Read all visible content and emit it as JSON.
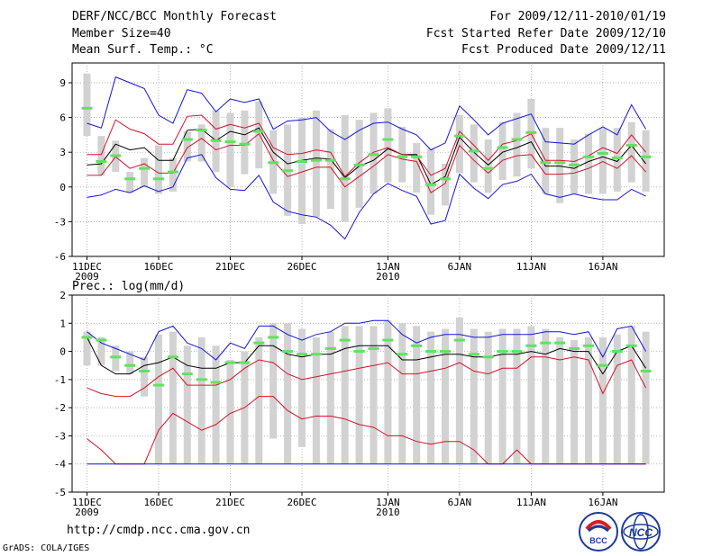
{
  "header": {
    "title": "DERF/NCC/BCC Monthly Forecast",
    "member_size": "Member Size=40",
    "variable": "Mean Surf. Temp.: °C",
    "forecast_period": "For 2009/12/11-2010/01/19",
    "fcst_started": "Fcst Started Refer Date 2009/12/10",
    "fcst_produced": "Fcst Produced Date 2009/12/11"
  },
  "footer": {
    "url": "http://cmdp.ncc.cma.gov.cn",
    "grads": "GrADS: COLA/IGES",
    "logo_left_text": "BCC",
    "logo_right_text": "NCC"
  },
  "colors": {
    "box": "#d2d2d2",
    "median": "#5fe35f",
    "mean": "#000000",
    "inner": "#d8102a",
    "outer": "#1414e0",
    "grid": "#999999"
  },
  "chart_data": [
    {
      "type": "box-line",
      "title": "",
      "xlabel": "",
      "ylabel": "Mean Surf. Temp.: °C",
      "ylim": [
        -6,
        10.5
      ],
      "yticks": [
        -6,
        -3,
        0,
        3,
        6,
        9
      ],
      "ytick_labels": [
        "-6",
        "-3",
        "0",
        "3",
        "6",
        "9"
      ],
      "xticks": [
        {
          "day": 1,
          "label": "11DEC",
          "sub": "2009"
        },
        {
          "day": 6,
          "label": "16DEC",
          "sub": ""
        },
        {
          "day": 11,
          "label": "21DEC",
          "sub": ""
        },
        {
          "day": 16,
          "label": "26DEC",
          "sub": ""
        },
        {
          "day": 22,
          "label": "1JAN",
          "sub": "2010"
        },
        {
          "day": 27,
          "label": "6JAN",
          "sub": ""
        },
        {
          "day": 32,
          "label": "11JAN",
          "sub": ""
        },
        {
          "day": 37,
          "label": "16JAN",
          "sub": ""
        }
      ],
      "x": [
        1,
        2,
        3,
        4,
        5,
        6,
        7,
        8,
        9,
        10,
        11,
        12,
        13,
        14,
        15,
        16,
        17,
        18,
        19,
        20,
        21,
        22,
        23,
        24,
        25,
        26,
        27,
        28,
        29,
        30,
        31,
        32,
        33,
        34,
        35,
        36,
        37,
        38,
        39,
        40
      ],
      "box_low": [
        4.4,
        1.0,
        1.3,
        -0.5,
        0.0,
        -0.6,
        -0.4,
        2.2,
        2.2,
        1.3,
        0.0,
        1.1,
        1.6,
        -0.6,
        -2.5,
        -3.2,
        -2.6,
        -1.9,
        -3.0,
        -1.8,
        -0.6,
        0.4,
        0.4,
        -0.5,
        -2.4,
        -1.6,
        1.2,
        0.4,
        -0.5,
        0.6,
        0.9,
        1.6,
        -0.6,
        -1.4,
        -0.6,
        -0.6,
        -0.6,
        -0.4,
        0.4,
        -0.4
      ],
      "box_high": [
        9.8,
        4.4,
        4.0,
        1.3,
        2.5,
        3.6,
        2.5,
        4.8,
        5.4,
        6.6,
        6.4,
        6.6,
        7.4,
        4.9,
        5.4,
        6.0,
        6.6,
        5.0,
        6.2,
        5.8,
        6.4,
        6.8,
        5.2,
        3.8,
        3.3,
        2.0,
        6.2,
        5.4,
        4.1,
        5.6,
        6.4,
        7.6,
        5.1,
        5.1,
        4.1,
        4.6,
        5.1,
        5.1,
        5.6,
        4.9
      ],
      "median": [
        6.8,
        2.2,
        2.7,
        0.7,
        1.6,
        0.7,
        1.3,
        4.1,
        4.9,
        4.0,
        3.9,
        3.7,
        4.8,
        2.1,
        1.4,
        2.2,
        2.3,
        2.3,
        0.7,
        1.9,
        2.8,
        4.1,
        2.6,
        2.6,
        0.2,
        0.7,
        4.4,
        3.1,
        1.6,
        3.4,
        4.1,
        4.7,
        2.1,
        2.1,
        1.9,
        2.6,
        2.9,
        2.5,
        3.6,
        2.6
      ],
      "series": [
        {
          "name": "Max",
          "role": "outer",
          "values": [
            -0.9,
            -0.7,
            -0.2,
            -0.5,
            0.1,
            -0.4,
            0.0,
            2.5,
            2.8,
            0.8,
            -0.2,
            -0.3,
            1.0,
            -1.3,
            -2.1,
            -2.4,
            -2.6,
            -3.3,
            -4.5,
            -2.2,
            -0.6,
            0.3,
            -0.3,
            -0.8,
            -3.2,
            -2.9,
            1.1,
            -0.1,
            -1.0,
            0.2,
            0.5,
            1.1,
            -0.6,
            -0.9,
            -0.6,
            -0.9,
            -1.1,
            -1.1,
            -0.2,
            -0.8
          ]
        },
        {
          "name": "Mean",
          "role": "mean",
          "values": [
            1.9,
            2.0,
            3.7,
            3.2,
            3.4,
            2.3,
            2.3,
            4.9,
            5.0,
            4.0,
            4.8,
            4.5,
            5.1,
            3.0,
            2.0,
            2.3,
            2.5,
            2.4,
            0.8,
            1.8,
            2.3,
            3.3,
            2.8,
            2.8,
            0.2,
            0.9,
            4.3,
            3.0,
            1.9,
            3.0,
            3.4,
            3.9,
            1.8,
            1.8,
            1.6,
            2.2,
            2.6,
            2.2,
            3.6,
            2.0
          ]
        },
        {
          "name": "Upper",
          "role": "inner",
          "values": [
            2.8,
            2.8,
            5.8,
            5.0,
            4.6,
            3.7,
            3.7,
            6.1,
            6.2,
            5.0,
            5.4,
            5.1,
            5.5,
            3.4,
            2.8,
            2.9,
            3.2,
            3.0,
            0.9,
            2.1,
            3.0,
            3.4,
            2.8,
            2.7,
            1.0,
            1.6,
            4.8,
            3.6,
            2.3,
            3.7,
            4.0,
            4.6,
            2.3,
            2.3,
            2.2,
            2.7,
            3.4,
            2.9,
            4.5,
            3.0
          ]
        },
        {
          "name": "Lower",
          "role": "inner",
          "values": [
            1.0,
            1.0,
            2.6,
            1.6,
            2.0,
            1.2,
            1.2,
            3.4,
            4.2,
            3.2,
            3.6,
            3.6,
            4.6,
            2.3,
            0.9,
            1.3,
            1.7,
            1.7,
            0.0,
            0.9,
            1.8,
            2.8,
            2.4,
            2.2,
            -0.5,
            0.3,
            3.6,
            2.3,
            1.2,
            2.3,
            2.7,
            2.8,
            1.1,
            1.1,
            1.2,
            1.6,
            2.2,
            1.6,
            2.7,
            1.3
          ]
        },
        {
          "name": "Min",
          "role": "outer",
          "values": [
            5.5,
            5.1,
            9.5,
            9.0,
            8.5,
            6.2,
            5.5,
            8.4,
            8.1,
            6.5,
            7.6,
            7.3,
            7.6,
            5.0,
            5.7,
            5.8,
            6.0,
            4.8,
            4.1,
            4.9,
            5.5,
            5.6,
            5.0,
            4.5,
            3.2,
            3.8,
            7.0,
            5.8,
            4.5,
            5.5,
            5.9,
            6.3,
            3.9,
            3.8,
            3.7,
            4.5,
            5.2,
            4.5,
            7.1,
            5.0
          ]
        }
      ]
    },
    {
      "type": "box-line",
      "title": "",
      "xlabel": "",
      "ylabel": "Prec.: log(mm/d)",
      "ylim": [
        -5,
        2
      ],
      "yticks": [
        -5,
        -4,
        -3,
        -2,
        -1,
        0,
        1,
        2
      ],
      "ytick_labels": [
        "-5",
        "-4",
        "-3",
        "-2",
        "-1",
        "0",
        "1",
        "2"
      ],
      "xticks": [
        {
          "day": 1,
          "label": "11DEC",
          "sub": "2009"
        },
        {
          "day": 6,
          "label": "16DEC",
          "sub": ""
        },
        {
          "day": 11,
          "label": "21DEC",
          "sub": ""
        },
        {
          "day": 16,
          "label": "26DEC",
          "sub": ""
        },
        {
          "day": 22,
          "label": "1JAN",
          "sub": "2010"
        },
        {
          "day": 27,
          "label": "6JAN",
          "sub": ""
        },
        {
          "day": 32,
          "label": "11JAN",
          "sub": ""
        },
        {
          "day": 37,
          "label": "16JAN",
          "sub": ""
        }
      ],
      "x": [
        1,
        2,
        3,
        4,
        5,
        6,
        7,
        8,
        9,
        10,
        11,
        12,
        13,
        14,
        15,
        16,
        17,
        18,
        19,
        20,
        21,
        22,
        23,
        24,
        25,
        26,
        27,
        28,
        29,
        30,
        31,
        32,
        33,
        34,
        35,
        36,
        37,
        38,
        39,
        40
      ],
      "box_low": [
        -0.5,
        -0.5,
        -0.7,
        -0.8,
        -1.6,
        -4.0,
        -4.0,
        -4.0,
        -4.0,
        -4.0,
        -4.0,
        -4.0,
        -4.0,
        -3.1,
        -4.0,
        -3.4,
        -4.0,
        -4.0,
        -4.0,
        -4.0,
        -4.0,
        -4.0,
        -4.0,
        -4.0,
        -4.0,
        -4.0,
        -4.0,
        -4.0,
        -4.0,
        -4.0,
        -4.0,
        -4.0,
        -4.0,
        -4.0,
        -4.0,
        -4.0,
        -4.0,
        -4.0,
        -4.0,
        -4.0
      ],
      "box_high": [
        0.7,
        0.5,
        0.2,
        0.0,
        -0.2,
        0.6,
        0.7,
        0.2,
        0.5,
        0.2,
        -0.3,
        0.0,
        0.5,
        1.0,
        1.0,
        0.8,
        0.5,
        0.7,
        0.9,
        0.9,
        0.9,
        1.1,
        1.0,
        0.9,
        0.7,
        0.8,
        1.2,
        0.8,
        0.7,
        0.8,
        0.8,
        0.9,
        0.8,
        0.5,
        0.4,
        0.5,
        0.5,
        0.6,
        0.9,
        0.7
      ],
      "median": [
        0.5,
        0.4,
        -0.2,
        -0.5,
        -0.7,
        -1.2,
        -0.2,
        -0.8,
        -1.0,
        -1.1,
        -0.4,
        -0.4,
        0.3,
        0.5,
        0.0,
        -0.1,
        -0.1,
        0.1,
        0.4,
        0.0,
        0.1,
        0.4,
        -0.1,
        0.2,
        0.0,
        0.0,
        0.4,
        -0.1,
        -0.2,
        0.0,
        0.0,
        0.2,
        0.3,
        0.3,
        0.1,
        0.2,
        -0.5,
        0.0,
        0.2,
        -0.7
      ],
      "series": [
        {
          "name": "Max",
          "role": "outer",
          "values": [
            0.7,
            0.3,
            0.1,
            -0.1,
            -0.3,
            0.7,
            0.9,
            0.3,
            0.1,
            -0.3,
            0.3,
            0.1,
            0.9,
            0.9,
            0.6,
            0.4,
            0.6,
            0.7,
            1.0,
            1.0,
            1.1,
            1.1,
            0.6,
            0.3,
            0.5,
            0.6,
            0.6,
            0.5,
            0.5,
            0.6,
            0.6,
            0.6,
            0.7,
            0.7,
            0.6,
            0.7,
            -0.2,
            0.8,
            0.9,
            0.0
          ]
        },
        {
          "name": "Mean",
          "role": "mean",
          "values": [
            0.5,
            -0.5,
            -0.8,
            -0.8,
            -0.5,
            -0.4,
            -0.2,
            -0.5,
            -0.6,
            -0.6,
            -0.4,
            -0.4,
            0.2,
            0.2,
            -0.1,
            -0.2,
            -0.1,
            -0.1,
            0.1,
            0.2,
            0.2,
            0.2,
            -0.3,
            -0.3,
            -0.2,
            -0.1,
            -0.1,
            -0.2,
            -0.2,
            -0.1,
            -0.1,
            0.0,
            -0.1,
            0.1,
            0.0,
            0.0,
            -0.8,
            0.0,
            0.2,
            -0.6
          ]
        },
        {
          "name": "Upper",
          "role": "inner",
          "values": [
            -1.3,
            -1.5,
            -1.6,
            -1.6,
            -1.3,
            -0.9,
            -0.6,
            -1.2,
            -1.2,
            -1.2,
            -1.0,
            -0.6,
            -0.3,
            -0.4,
            -0.8,
            -1.0,
            -0.9,
            -0.8,
            -0.7,
            -0.6,
            -0.5,
            -0.4,
            -0.8,
            -0.8,
            -0.7,
            -0.6,
            -0.4,
            -0.7,
            -0.8,
            -0.6,
            -0.6,
            -0.2,
            -0.2,
            -0.3,
            -0.2,
            -0.3,
            -1.5,
            -0.5,
            -0.3,
            -1.3
          ]
        },
        {
          "name": "Lower",
          "role": "inner",
          "values": [
            -3.1,
            -3.5,
            -4.0,
            -4.0,
            -4.0,
            -2.8,
            -2.2,
            -2.5,
            -2.8,
            -2.6,
            -2.2,
            -2.0,
            -1.6,
            -1.6,
            -2.1,
            -2.4,
            -2.3,
            -2.3,
            -2.4,
            -2.6,
            -2.7,
            -3.0,
            -3.0,
            -3.2,
            -3.3,
            -3.2,
            -3.2,
            -3.5,
            -4.0,
            -4.0,
            -3.5,
            -4.0,
            -4.0,
            -4.0,
            -4.0,
            -4.0,
            -4.0,
            -4.0,
            -4.0,
            -4.0
          ]
        },
        {
          "name": "Min",
          "role": "outer",
          "values": [
            -4.0,
            -4.0,
            -4.0,
            -4.0,
            -4.0,
            -4.0,
            -4.0,
            -4.0,
            -4.0,
            -4.0,
            -4.0,
            -4.0,
            -4.0,
            -4.0,
            -4.0,
            -4.0,
            -4.0,
            -4.0,
            -4.0,
            -4.0,
            -4.0,
            -4.0,
            -4.0,
            -4.0,
            -4.0,
            -4.0,
            -4.0,
            -4.0,
            -4.0,
            -4.0,
            -4.0,
            -4.0,
            -4.0,
            -4.0,
            -4.0,
            -4.0,
            -4.0,
            -4.0,
            -4.0,
            -4.0
          ]
        }
      ]
    }
  ]
}
